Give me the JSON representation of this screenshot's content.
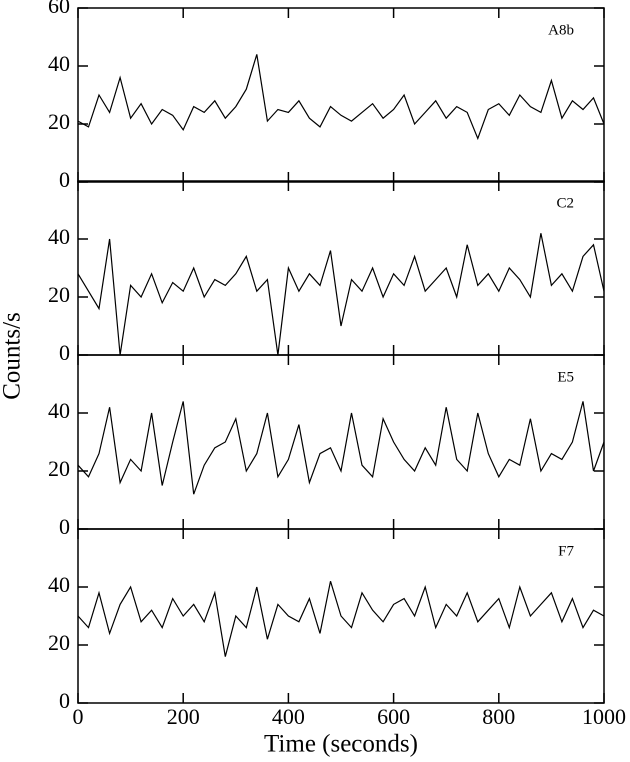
{
  "ylabel": "Counts/s",
  "chart_data": [
    {
      "type": "line",
      "annotation": "A8b",
      "color": "#000000",
      "x": [
        0,
        20,
        40,
        60,
        80,
        100,
        120,
        140,
        160,
        180,
        200,
        220,
        240,
        260,
        280,
        300,
        320,
        340,
        360,
        380,
        400,
        420,
        440,
        460,
        480,
        500,
        520,
        540,
        560,
        580,
        600,
        620,
        640,
        660,
        680,
        700,
        720,
        740,
        760,
        780,
        800,
        820,
        840,
        860,
        880,
        900,
        920,
        940,
        960,
        980,
        1000
      ],
      "values": [
        21,
        19,
        30,
        24,
        36,
        22,
        27,
        20,
        25,
        23,
        18,
        26,
        24,
        28,
        22,
        26,
        32,
        44,
        21,
        25,
        24,
        28,
        22,
        19,
        26,
        23,
        21,
        24,
        27,
        22,
        25,
        30,
        20,
        24,
        28,
        22,
        26,
        24,
        15,
        25,
        27,
        23,
        30,
        26,
        24,
        35,
        22,
        28,
        25,
        29,
        20
      ],
      "xlim": [
        0,
        1000
      ],
      "ylim": [
        0,
        60
      ],
      "xticks": [
        0,
        200,
        400,
        600,
        800,
        1000
      ],
      "yticks": [
        0,
        20,
        40,
        60
      ]
    },
    {
      "type": "line",
      "annotation": "C2",
      "color": "#000000",
      "x": [
        0,
        20,
        40,
        60,
        80,
        100,
        120,
        140,
        160,
        180,
        200,
        220,
        240,
        260,
        280,
        300,
        320,
        340,
        360,
        380,
        400,
        420,
        440,
        460,
        480,
        500,
        520,
        540,
        560,
        580,
        600,
        620,
        640,
        660,
        680,
        700,
        720,
        740,
        760,
        780,
        800,
        820,
        840,
        860,
        880,
        900,
        920,
        940,
        960,
        980,
        1000
      ],
      "values": [
        28,
        22,
        16,
        40,
        0,
        24,
        20,
        28,
        18,
        25,
        22,
        30,
        20,
        26,
        24,
        28,
        34,
        22,
        26,
        0,
        30,
        22,
        28,
        24,
        36,
        10,
        26,
        22,
        30,
        20,
        28,
        24,
        34,
        22,
        26,
        30,
        20,
        38,
        24,
        28,
        22,
        30,
        26,
        20,
        42,
        24,
        28,
        22,
        34,
        38,
        22
      ],
      "xlim": [
        0,
        1000
      ],
      "ylim": [
        0,
        60
      ],
      "xticks": [
        0,
        200,
        400,
        600,
        800,
        1000
      ],
      "yticks": [
        0,
        20,
        40
      ]
    },
    {
      "type": "line",
      "annotation": "E5",
      "color": "#000000",
      "x": [
        0,
        20,
        40,
        60,
        80,
        100,
        120,
        140,
        160,
        180,
        200,
        220,
        240,
        260,
        280,
        300,
        320,
        340,
        360,
        380,
        400,
        420,
        440,
        460,
        480,
        500,
        520,
        540,
        560,
        580,
        600,
        620,
        640,
        660,
        680,
        700,
        720,
        740,
        760,
        780,
        800,
        820,
        840,
        860,
        880,
        900,
        920,
        940,
        960,
        980,
        1000
      ],
      "values": [
        22,
        18,
        26,
        42,
        16,
        24,
        20,
        40,
        15,
        30,
        44,
        12,
        22,
        28,
        30,
        38,
        20,
        26,
        40,
        18,
        24,
        36,
        16,
        26,
        28,
        20,
        40,
        22,
        18,
        38,
        30,
        24,
        20,
        28,
        22,
        42,
        24,
        20,
        40,
        26,
        18,
        24,
        22,
        38,
        20,
        26,
        24,
        30,
        44,
        20,
        30
      ],
      "xlim": [
        0,
        1000
      ],
      "ylim": [
        0,
        60
      ],
      "xticks": [
        0,
        200,
        400,
        600,
        800,
        1000
      ],
      "yticks": [
        0,
        20,
        40
      ]
    },
    {
      "type": "line",
      "annotation": "F7",
      "color": "#000000",
      "xlabel": "Time  (seconds)",
      "x": [
        0,
        20,
        40,
        60,
        80,
        100,
        120,
        140,
        160,
        180,
        200,
        220,
        240,
        260,
        280,
        300,
        320,
        340,
        360,
        380,
        400,
        420,
        440,
        460,
        480,
        500,
        520,
        540,
        560,
        580,
        600,
        620,
        640,
        660,
        680,
        700,
        720,
        740,
        760,
        780,
        800,
        820,
        840,
        860,
        880,
        900,
        920,
        940,
        960,
        980,
        1000
      ],
      "values": [
        30,
        26,
        38,
        24,
        34,
        40,
        28,
        32,
        26,
        36,
        30,
        34,
        28,
        38,
        16,
        30,
        26,
        40,
        22,
        34,
        30,
        28,
        36,
        24,
        42,
        30,
        26,
        38,
        32,
        28,
        34,
        36,
        30,
        40,
        26,
        34,
        30,
        38,
        28,
        32,
        36,
        26,
        40,
        30,
        34,
        38,
        28,
        36,
        26,
        32,
        30
      ],
      "xlim": [
        0,
        1000
      ],
      "ylim": [
        0,
        60
      ],
      "xticks": [
        0,
        200,
        400,
        600,
        800,
        1000
      ],
      "yticks": [
        0,
        20,
        40
      ]
    }
  ]
}
